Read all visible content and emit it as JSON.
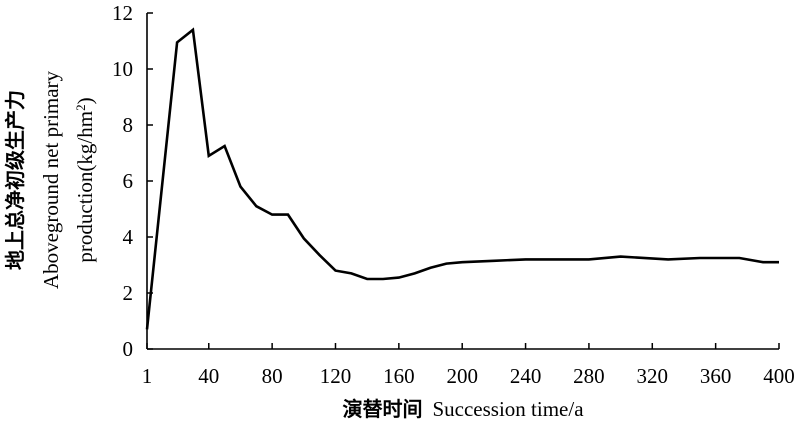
{
  "chart_data": {
    "type": "line",
    "x": [
      1,
      20,
      30,
      40,
      50,
      60,
      70,
      80,
      90,
      100,
      110,
      120,
      130,
      140,
      150,
      160,
      170,
      180,
      190,
      200,
      220,
      240,
      260,
      280,
      300,
      330,
      350,
      375,
      390,
      400
    ],
    "series": [
      {
        "values": [
          0.7,
          10.95,
          11.4,
          6.9,
          7.25,
          5.8,
          5.1,
          4.8,
          4.8,
          3.95,
          3.35,
          2.8,
          2.7,
          2.5,
          2.5,
          2.55,
          2.7,
          2.9,
          3.05,
          3.1,
          3.15,
          3.2,
          3.2,
          3.2,
          3.3,
          3.2,
          3.25,
          3.25,
          3.1,
          3.1
        ]
      }
    ],
    "xlabel_cn": "演替时间",
    "xlabel_en": "Succession time/a",
    "ylabel_cn": "地上总净初级生产力",
    "ylabel_en_line1": "Aboveground net primary",
    "ylabel_en_line2_prefix": "production(kg/hm",
    "ylabel_en_line2_sup": "2",
    "ylabel_en_line2_suffix": ")",
    "xlim": [
      1,
      400
    ],
    "ylim": [
      0,
      12
    ],
    "x_ticks": [
      1,
      40,
      80,
      120,
      160,
      200,
      240,
      280,
      320,
      360,
      400
    ],
    "y_ticks": [
      0,
      2,
      4,
      6,
      8,
      10,
      12
    ],
    "grid": false,
    "line_color": "#000000"
  }
}
